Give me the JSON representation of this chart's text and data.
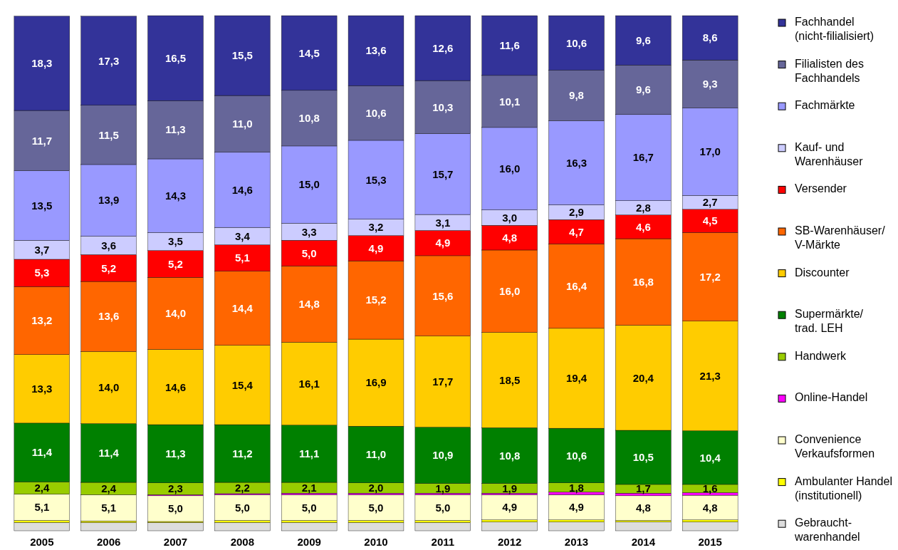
{
  "chart_data": {
    "type": "bar",
    "stacked": true,
    "legend": "right",
    "categories": [
      "2005",
      "2006",
      "2007",
      "2008",
      "2009",
      "2010",
      "2011",
      "2012",
      "2013",
      "2014",
      "2015"
    ],
    "series": [
      {
        "name": "Gebraucht- warenhandel",
        "color": "#dddddd",
        "values": [
          1.6,
          1.6,
          1.6,
          1.6,
          1.6,
          1.6,
          1.6,
          1.7,
          1.7,
          1.7,
          1.7
        ]
      },
      {
        "name": "Ambulanter Handel (institutionell)",
        "color": "#ffff00",
        "values": [
          0.4,
          0.3,
          0.2,
          0.4,
          0.4,
          0.4,
          0.4,
          0.4,
          0.4,
          0.3,
          0.4
        ]
      },
      {
        "name": "Convenience Verkaufsformen",
        "color": "#ffffcc",
        "values": [
          5.1,
          5.1,
          5.0,
          5.0,
          5.0,
          5.0,
          5.0,
          4.9,
          4.9,
          4.8,
          4.8
        ],
        "value_labels": [
          "5,1",
          "5,1",
          "5,0",
          "5,0",
          "5,0",
          "5,0",
          "5,0",
          "4,9",
          "4,9",
          "4,8",
          "4,8"
        ]
      },
      {
        "name": "Online-Handel",
        "color": "#ff00ff",
        "values": [
          null,
          null,
          0.2,
          0.2,
          0.3,
          0.3,
          0.3,
          0.3,
          0.5,
          0.5,
          0.5
        ]
      },
      {
        "name": "Handwerk",
        "color": "#99cc00",
        "values": [
          2.4,
          2.4,
          2.3,
          2.2,
          2.1,
          2.0,
          1.9,
          1.9,
          1.8,
          1.7,
          1.6
        ],
        "value_labels": [
          "2,4",
          "2,4",
          "2,3",
          "2,2",
          "2,1",
          "2,0",
          "1,9",
          "1,9",
          "1,8",
          "1,7",
          "1,6"
        ]
      },
      {
        "name": "Supermärkte/ trad. LEH",
        "color": "#008000",
        "values": [
          11.4,
          11.4,
          11.3,
          11.2,
          11.1,
          11.0,
          10.9,
          10.8,
          10.6,
          10.5,
          10.4
        ],
        "value_labels": [
          "11,4",
          "11,4",
          "11,3",
          "11,2",
          "11,1",
          "11,0",
          "10,9",
          "10,8",
          "10,6",
          "10,5",
          "10,4"
        ]
      },
      {
        "name": "Discounter",
        "color": "#ffcc00",
        "values": [
          13.3,
          14.0,
          14.6,
          15.4,
          16.1,
          16.9,
          17.7,
          18.5,
          19.4,
          20.4,
          21.3
        ],
        "value_labels": [
          "13,3",
          "14,0",
          "14,6",
          "15,4",
          "16,1",
          "16,9",
          "17,7",
          "18,5",
          "19,4",
          "20,4",
          "21,3"
        ]
      },
      {
        "name": "SB-Warenhäuser/ V-Märkte",
        "color": "#ff6600",
        "values": [
          13.2,
          13.6,
          14.0,
          14.4,
          14.8,
          15.2,
          15.6,
          16.0,
          16.4,
          16.8,
          17.2
        ],
        "value_labels": [
          "13,2",
          "13,6",
          "14,0",
          "14,4",
          "14,8",
          "15,2",
          "15,6",
          "16,0",
          "16,4",
          "16,8",
          "17,2"
        ]
      },
      {
        "name": "Versender",
        "color": "#ff0000",
        "values": [
          5.3,
          5.2,
          5.2,
          5.1,
          5.0,
          4.9,
          4.9,
          4.8,
          4.7,
          4.6,
          4.5
        ],
        "value_labels": [
          "5,3",
          "5,2",
          "5,2",
          "5,1",
          "5,0",
          "4,9",
          "4,9",
          "4,8",
          "4,7",
          "4,6",
          "4,5"
        ]
      },
      {
        "name": "Kauf- und Warenhäuser",
        "color": "#ccccff",
        "values": [
          3.7,
          3.6,
          3.5,
          3.4,
          3.3,
          3.2,
          3.1,
          3.0,
          2.9,
          2.8,
          2.7
        ],
        "value_labels": [
          "3,7",
          "3,6",
          "3,5",
          "3,4",
          "3,3",
          "3,2",
          "3,1",
          "3,0",
          "2,9",
          "2,8",
          "2,7"
        ]
      },
      {
        "name": "Fachmärkte",
        "color": "#9999ff",
        "values": [
          13.5,
          13.9,
          14.3,
          14.6,
          15.0,
          15.3,
          15.7,
          16.0,
          16.3,
          16.7,
          17.0
        ],
        "value_labels": [
          "13,5",
          "13,9",
          "14,3",
          "14,6",
          "15,0",
          "15,3",
          "15,7",
          "16,0",
          "16,3",
          "16,7",
          "17,0"
        ]
      },
      {
        "name": "Filialisten des Fachhandels",
        "color": "#666699",
        "values": [
          11.7,
          11.5,
          11.3,
          11.0,
          10.8,
          10.6,
          10.3,
          10.1,
          9.8,
          9.6,
          9.3
        ],
        "value_labels": [
          "11,7",
          "11,5",
          "11,3",
          "11,0",
          "10,8",
          "10,6",
          "10,3",
          "10,1",
          "9,8",
          "9,6",
          "9,3"
        ]
      },
      {
        "name": "Fachhandel (nicht-filialisiert)",
        "color": "#333399",
        "values": [
          18.3,
          17.3,
          16.5,
          15.5,
          14.5,
          13.6,
          12.6,
          11.6,
          10.6,
          9.6,
          8.6
        ],
        "value_labels": [
          "18,3",
          "17,3",
          "16,5",
          "15,5",
          "14,5",
          "13,6",
          "12,6",
          "11,6",
          "10,6",
          "9,6",
          "8,6"
        ]
      }
    ]
  }
}
